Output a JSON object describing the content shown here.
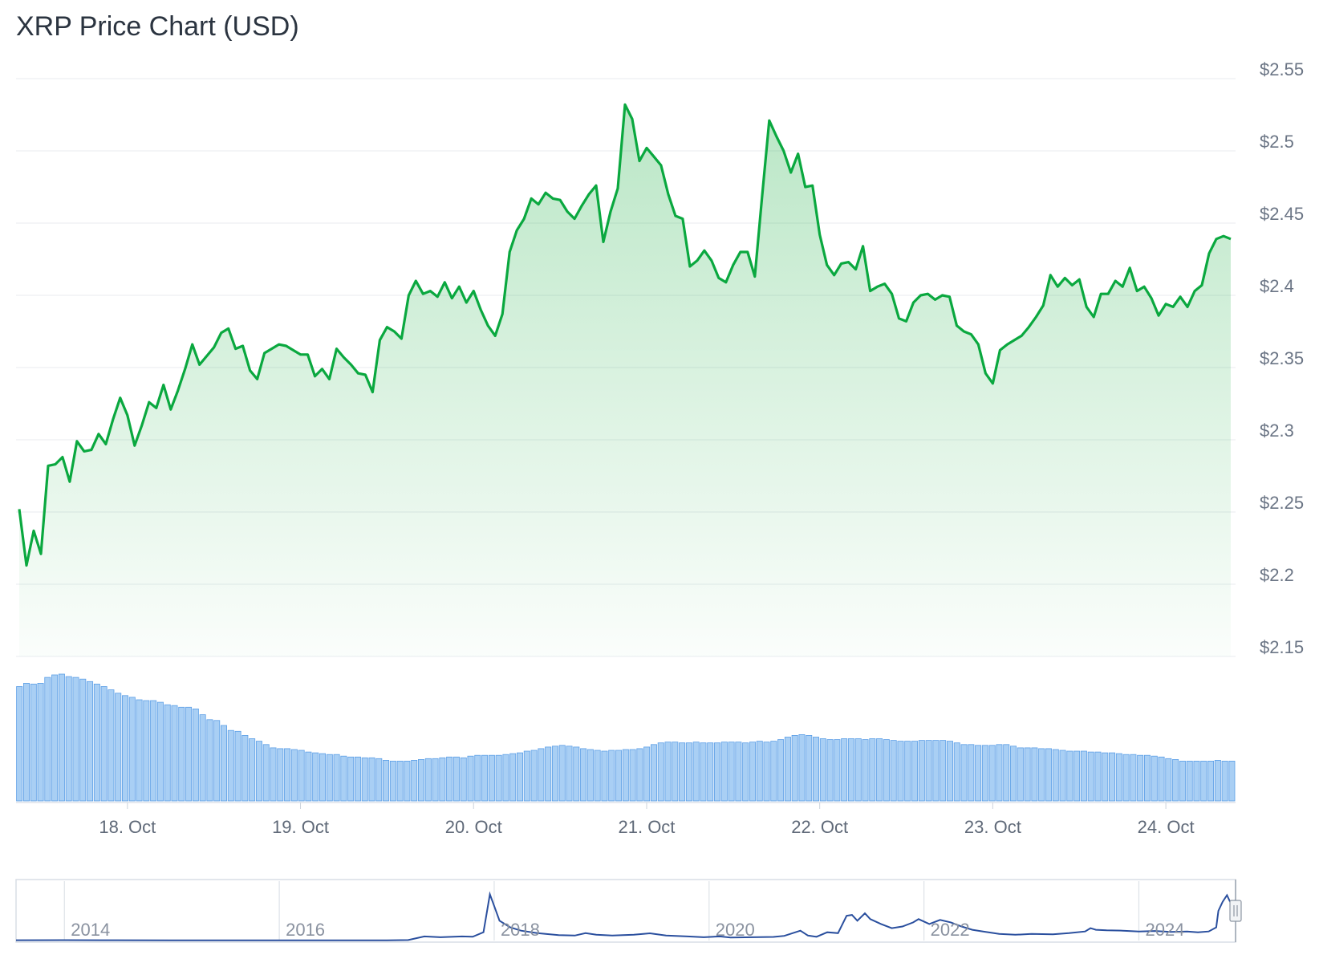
{
  "title": "XRP Price Chart (USD)",
  "colors": {
    "price_line": "#0aa83f",
    "area_fill": "#26b24b",
    "volume_bar_fill": "#a9cff4",
    "volume_bar_stroke": "#5b9ee6",
    "navigator_line": "#2a4f9e",
    "grid": "#e8ebef"
  },
  "chart_data": {
    "type": "area",
    "main": {
      "y_axis": {
        "ticks": [
          2.15,
          2.2,
          2.25,
          2.3,
          2.35,
          2.4,
          2.45,
          2.5,
          2.55
        ],
        "tick_labels": [
          "$2.15",
          "$2.2",
          "$2.25",
          "$2.3",
          "$2.35",
          "$2.4",
          "$2.45",
          "$2.5",
          "$2.55"
        ],
        "range": [
          2.15,
          2.55
        ]
      },
      "x_axis": {
        "range_days": [
          17.375,
          24.375
        ],
        "ticks": [
          18,
          19,
          20,
          21,
          22,
          23,
          24
        ],
        "tick_labels": [
          "18. Oct",
          "19. Oct",
          "20. Oct",
          "21. Oct",
          "22. Oct",
          "23. Oct",
          "24. Oct"
        ]
      },
      "series": [
        {
          "values": [
            2.252,
            2.213,
            2.237,
            2.221,
            2.282,
            2.283,
            2.288,
            2.271,
            2.299,
            2.292,
            2.293,
            2.304,
            2.297,
            2.314,
            2.329,
            2.317,
            2.296,
            2.31,
            2.326,
            2.322,
            2.338,
            2.321,
            2.334,
            2.349,
            2.366,
            2.352,
            2.358,
            2.364,
            2.374,
            2.377,
            2.363,
            2.365,
            2.348,
            2.342,
            2.36,
            2.363,
            2.366,
            2.365,
            2.362,
            2.359,
            2.359,
            2.344,
            2.349,
            2.342,
            2.363,
            2.357,
            2.352,
            2.346,
            2.345,
            2.333,
            2.369,
            2.378,
            2.375,
            2.37,
            2.4,
            2.41,
            2.401,
            2.403,
            2.399,
            2.409,
            2.398,
            2.406,
            2.395,
            2.403,
            2.39,
            2.379,
            2.372,
            2.387,
            2.43,
            2.445,
            2.453,
            2.467,
            2.463,
            2.471,
            2.467,
            2.466,
            2.458,
            2.453,
            2.462,
            2.47,
            2.476,
            2.437,
            2.458,
            2.474,
            2.532,
            2.522,
            2.493,
            2.502,
            2.496,
            2.49,
            2.47,
            2.455,
            2.453,
            2.42,
            2.424,
            2.431,
            2.424,
            2.412,
            2.409,
            2.421,
            2.43,
            2.43,
            2.413,
            2.468,
            2.521,
            2.51,
            2.5,
            2.485,
            2.498,
            2.475,
            2.476,
            2.442,
            2.421,
            2.414,
            2.422,
            2.423,
            2.418,
            2.434,
            2.403,
            2.406,
            2.408,
            2.401,
            2.384,
            2.382,
            2.395,
            2.4,
            2.401,
            2.397,
            2.4,
            2.399,
            2.379,
            2.375,
            2.373,
            2.366,
            2.346,
            2.339,
            2.362,
            2.366,
            2.369,
            2.372,
            2.378,
            2.385,
            2.393,
            2.414,
            2.406,
            2.412,
            2.407,
            2.411,
            2.392,
            2.385,
            2.401,
            2.401,
            2.41,
            2.406,
            2.419,
            2.403,
            2.406,
            2.398,
            2.386,
            2.394,
            2.392,
            2.399,
            2.392,
            2.403,
            2.407,
            2.429,
            2.439,
            2.441,
            2.439
          ]
        }
      ]
    },
    "volume": {
      "values": [
        138,
        142,
        141,
        142,
        149,
        152,
        153,
        150,
        149,
        147,
        144,
        141,
        138,
        134,
        130,
        127,
        125,
        122,
        121,
        121,
        119,
        116,
        115,
        113,
        113,
        111,
        104,
        98,
        97,
        91,
        85,
        84,
        79,
        75,
        72,
        68,
        64,
        63,
        63,
        62,
        61,
        59,
        58,
        57,
        56,
        56,
        54,
        53,
        53,
        52,
        52,
        51,
        49,
        48,
        48,
        48,
        49,
        50,
        51,
        51,
        52,
        53,
        53,
        52,
        54,
        55,
        55,
        55,
        55,
        56,
        57,
        58,
        60,
        61,
        63,
        65,
        66,
        67,
        66,
        65,
        63,
        62,
        61,
        60,
        61,
        61,
        62,
        62,
        63,
        65,
        68,
        70,
        71,
        71,
        70,
        70,
        71,
        70,
        70,
        70,
        71,
        71,
        71,
        70,
        71,
        72,
        71,
        72,
        74,
        77,
        79,
        80,
        79,
        77,
        75,
        74,
        74,
        75,
        75,
        75,
        74,
        75,
        75,
        74,
        73,
        72,
        72,
        72,
        73,
        73,
        73,
        73,
        72,
        70,
        68,
        68,
        67,
        67,
        67,
        68,
        68,
        66,
        64,
        64,
        64,
        63,
        63,
        62,
        61,
        60,
        60,
        60,
        59,
        59,
        58,
        58,
        57,
        56,
        56,
        55,
        55,
        54,
        53,
        51,
        50,
        48,
        48,
        48,
        48,
        48,
        49,
        48,
        48
      ]
    },
    "navigator": {
      "year_labels": [
        "2014",
        "2016",
        "2018",
        "2020",
        "2022",
        "2024"
      ],
      "year_positions": [
        2014,
        2016,
        2018,
        2020,
        2022,
        2024
      ],
      "x_range": [
        2013.55,
        2024.9
      ],
      "y_range": [
        0,
        3.6
      ],
      "points": [
        [
          2013.55,
          0.02
        ],
        [
          2014.0,
          0.025
        ],
        [
          2014.5,
          0.02
        ],
        [
          2015.0,
          0.015
        ],
        [
          2015.5,
          0.01
        ],
        [
          2016.0,
          0.008
        ],
        [
          2016.5,
          0.008
        ],
        [
          2017.0,
          0.008
        ],
        [
          2017.2,
          0.03
        ],
        [
          2017.35,
          0.25
        ],
        [
          2017.5,
          0.2
        ],
        [
          2017.7,
          0.25
        ],
        [
          2017.8,
          0.23
        ],
        [
          2017.9,
          0.5
        ],
        [
          2017.96,
          2.8
        ],
        [
          2018.0,
          2.1
        ],
        [
          2018.05,
          1.2
        ],
        [
          2018.15,
          0.8
        ],
        [
          2018.25,
          0.6
        ],
        [
          2018.4,
          0.45
        ],
        [
          2018.6,
          0.33
        ],
        [
          2018.75,
          0.3
        ],
        [
          2018.85,
          0.45
        ],
        [
          2018.95,
          0.35
        ],
        [
          2019.1,
          0.3
        ],
        [
          2019.3,
          0.35
        ],
        [
          2019.45,
          0.44
        ],
        [
          2019.6,
          0.3
        ],
        [
          2019.8,
          0.25
        ],
        [
          2019.95,
          0.2
        ],
        [
          2020.1,
          0.25
        ],
        [
          2020.2,
          0.18
        ],
        [
          2020.4,
          0.2
        ],
        [
          2020.6,
          0.22
        ],
        [
          2020.7,
          0.28
        ],
        [
          2020.85,
          0.6
        ],
        [
          2020.92,
          0.3
        ],
        [
          2021.0,
          0.23
        ],
        [
          2021.1,
          0.5
        ],
        [
          2021.2,
          0.45
        ],
        [
          2021.28,
          1.5
        ],
        [
          2021.33,
          1.55
        ],
        [
          2021.38,
          1.2
        ],
        [
          2021.45,
          1.65
        ],
        [
          2021.5,
          1.3
        ],
        [
          2021.6,
          1.0
        ],
        [
          2021.7,
          0.75
        ],
        [
          2021.8,
          0.85
        ],
        [
          2021.9,
          1.1
        ],
        [
          2021.95,
          1.3
        ],
        [
          2022.05,
          1.0
        ],
        [
          2022.15,
          1.25
        ],
        [
          2022.25,
          1.1
        ],
        [
          2022.35,
          0.85
        ],
        [
          2022.45,
          0.65
        ],
        [
          2022.55,
          0.55
        ],
        [
          2022.7,
          0.4
        ],
        [
          2022.85,
          0.35
        ],
        [
          2023.0,
          0.4
        ],
        [
          2023.2,
          0.38
        ],
        [
          2023.35,
          0.45
        ],
        [
          2023.5,
          0.55
        ],
        [
          2023.55,
          0.75
        ],
        [
          2023.6,
          0.65
        ],
        [
          2023.7,
          0.62
        ],
        [
          2023.85,
          0.6
        ],
        [
          2024.0,
          0.55
        ],
        [
          2024.15,
          0.58
        ],
        [
          2024.3,
          0.52
        ],
        [
          2024.45,
          0.55
        ],
        [
          2024.55,
          0.5
        ],
        [
          2024.65,
          0.55
        ],
        [
          2024.72,
          0.8
        ],
        [
          2024.74,
          1.8
        ],
        [
          2024.78,
          2.35
        ],
        [
          2024.82,
          2.75
        ],
        [
          2024.86,
          2.2
        ],
        [
          2024.9,
          2.45
        ]
      ]
    }
  }
}
